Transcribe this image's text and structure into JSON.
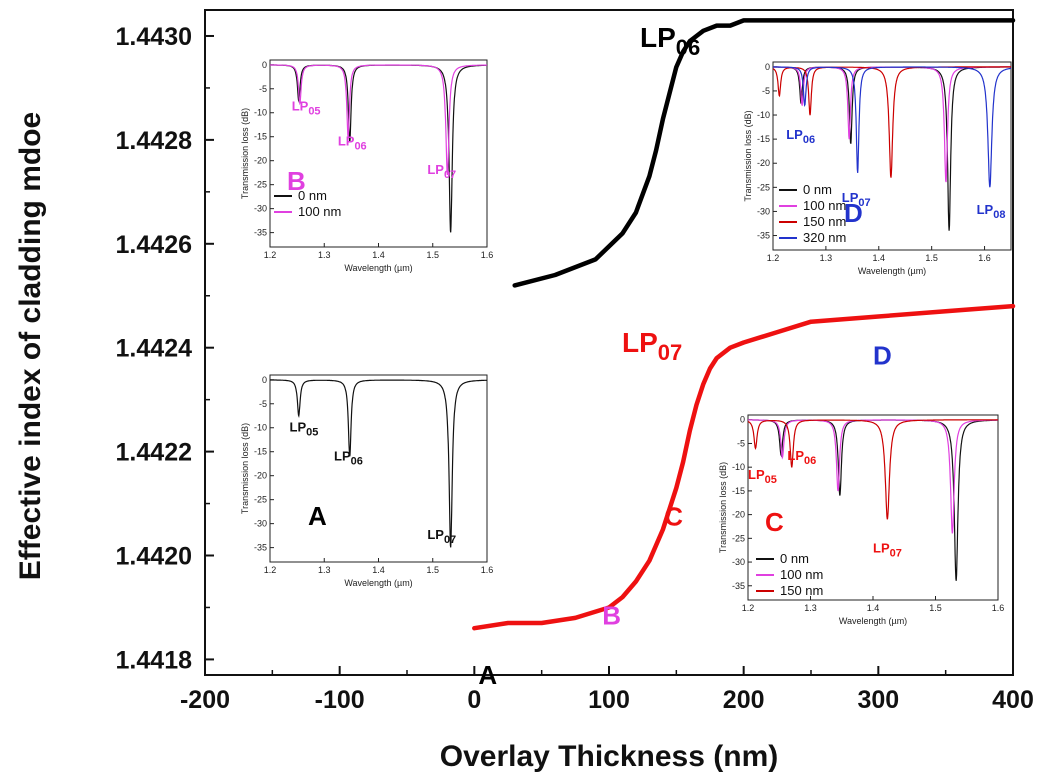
{
  "chart_data": {
    "type": "line",
    "xlabel": "Overlay Thickness (nm)",
    "ylabel": "Effective index of cladding mdoe",
    "xlim": [
      -200,
      400
    ],
    "ylim": [
      1.44177,
      1.44305
    ],
    "xticks": [
      "-200",
      "-100",
      "0",
      "100",
      "200",
      "300",
      "400"
    ],
    "yticks": [
      "1.4418",
      "1.4420",
      "1.4422",
      "1.4424",
      "1.4426",
      "1.4428",
      "1.4430"
    ],
    "series": [
      {
        "name": "LP06",
        "label_main": "LP",
        "label_sub": "06",
        "color": "#000000",
        "x": [
          30,
          60,
          90,
          110,
          120,
          130,
          135,
          140,
          145,
          150,
          155,
          160,
          165,
          170,
          180,
          190,
          200,
          225,
          250,
          300,
          350,
          400
        ],
        "y": [
          1.44252,
          1.44254,
          1.44257,
          1.44262,
          1.44266,
          1.44273,
          1.44278,
          1.44284,
          1.44289,
          1.44294,
          1.44297,
          1.44299,
          1.443,
          1.44301,
          1.44302,
          1.44302,
          1.44303,
          1.44303,
          1.44303,
          1.44303,
          1.44303,
          1.44303
        ]
      },
      {
        "name": "LP07",
        "label_main": "LP",
        "label_sub": "07",
        "color": "#ee1111",
        "x": [
          0,
          25,
          50,
          75,
          100,
          110,
          120,
          130,
          140,
          150,
          155,
          160,
          165,
          170,
          175,
          180,
          190,
          200,
          225,
          250,
          300,
          350,
          400
        ],
        "y": [
          1.44186,
          1.44187,
          1.44187,
          1.44188,
          1.4419,
          1.44192,
          1.44195,
          1.44199,
          1.44205,
          1.44213,
          1.44218,
          1.44224,
          1.44229,
          1.44233,
          1.44236,
          1.44238,
          1.4424,
          1.44241,
          1.44243,
          1.44245,
          1.44246,
          1.44247,
          1.44248
        ]
      }
    ],
    "annotations": [
      {
        "text": "A",
        "x": 10,
        "y": 1.44177,
        "color": "#000000"
      },
      {
        "text": "B",
        "x": 102,
        "y": 1.441885,
        "color": "#e040e0"
      },
      {
        "text": "C",
        "x": 148,
        "y": 1.442075,
        "color": "#ee1111"
      },
      {
        "text": "D",
        "x": 303,
        "y": 1.442385,
        "color": "#2233cc"
      }
    ],
    "insets": [
      {
        "id": "A",
        "panel": "A",
        "panel_color": "#000000",
        "xlabel": "Wavelength (µm)",
        "ylabel": "Transmission loss (dB)",
        "xlim": [
          1.2,
          1.6
        ],
        "ylim": [
          -38,
          1
        ],
        "xticks": [
          "1.2",
          "1.3",
          "1.4",
          "1.5",
          "1.6"
        ],
        "yticks": [
          "0",
          "-5",
          "-10",
          "-15",
          "-20",
          "-25",
          "-30",
          "-35"
        ],
        "legend": [],
        "mode_labels": [
          {
            "main": "LP",
            "sub": "05",
            "x": 1.236,
            "y": -10.8,
            "color": "#111111"
          },
          {
            "main": "LP",
            "sub": "06",
            "x": 1.318,
            "y": -16.8,
            "color": "#111111"
          },
          {
            "main": "LP",
            "sub": "07",
            "x": 1.49,
            "y": -33.2,
            "color": "#111111"
          }
        ],
        "spectra": [
          {
            "color": "#111111",
            "dips": [
              [
                1.253,
                7.5,
                0.003
              ],
              [
                1.347,
                16,
                0.003
              ],
              [
                1.533,
                35,
                0.0035
              ]
            ]
          }
        ]
      },
      {
        "id": "B",
        "panel": "B",
        "panel_color": "#e040e0",
        "xlabel": "Wavelength (µm)",
        "ylabel": "Transmission loss (dB)",
        "xlim": [
          1.2,
          1.6
        ],
        "ylim": [
          -38,
          1
        ],
        "xticks": [
          "1.2",
          "1.3",
          "1.4",
          "1.5",
          "1.6"
        ],
        "yticks": [
          "0",
          "-5",
          "-10",
          "-15",
          "-20",
          "-25",
          "-30",
          "-35"
        ],
        "legend": [
          {
            "label": "0 nm",
            "color": "#111111"
          },
          {
            "label": "100 nm",
            "color": "#e040e0"
          }
        ],
        "mode_labels": [
          {
            "main": "LP",
            "sub": "05",
            "x": 1.24,
            "y": -9.5,
            "color": "#e040e0"
          },
          {
            "main": "LP",
            "sub": "06",
            "x": 1.325,
            "y": -16.8,
            "color": "#e040e0"
          },
          {
            "main": "LP",
            "sub": "07",
            "x": 1.49,
            "y": -22.8,
            "color": "#e040e0"
          }
        ],
        "spectra": [
          {
            "color": "#111111",
            "dips": [
              [
                1.253,
                7.5,
                0.003
              ],
              [
                1.347,
                16,
                0.003
              ],
              [
                1.533,
                35,
                0.0035
              ]
            ]
          },
          {
            "color": "#e040e0",
            "dips": [
              [
                1.255,
                8,
                0.003
              ],
              [
                1.344,
                15,
                0.003
              ],
              [
                1.527,
                23,
                0.0035
              ]
            ]
          }
        ]
      },
      {
        "id": "C",
        "panel": "C",
        "panel_color": "#ee1111",
        "xlabel": "Wavelength (µm)",
        "ylabel": "Transmission loss (dB)",
        "xlim": [
          1.2,
          1.6
        ],
        "ylim": [
          -38,
          1
        ],
        "xticks": [
          "1.2",
          "1.3",
          "1.4",
          "1.5",
          "1.6"
        ],
        "yticks": [
          "0",
          "-5",
          "-10",
          "-15",
          "-20",
          "-25",
          "-30",
          "-35"
        ],
        "legend": [
          {
            "label": "0 nm",
            "color": "#111111"
          },
          {
            "label": "100 nm",
            "color": "#e040e0"
          },
          {
            "label": "150 nm",
            "color": "#cc0000"
          }
        ],
        "mode_labels": [
          {
            "main": "LP",
            "sub": "05",
            "x": 1.2,
            "y": -12.5,
            "color": "#ee1111"
          },
          {
            "main": "LP",
            "sub": "06",
            "x": 1.263,
            "y": -8.5,
            "color": "#ee1111"
          },
          {
            "main": "LP",
            "sub": "07",
            "x": 1.4,
            "y": -28,
            "color": "#ee1111"
          }
        ],
        "spectra": [
          {
            "color": "#111111",
            "dips": [
              [
                1.253,
                7.5,
                0.003
              ],
              [
                1.347,
                16,
                0.003
              ],
              [
                1.533,
                34,
                0.0035
              ]
            ]
          },
          {
            "color": "#e040e0",
            "dips": [
              [
                1.255,
                8,
                0.003
              ],
              [
                1.344,
                15,
                0.003
              ],
              [
                1.527,
                24,
                0.0035
              ]
            ]
          },
          {
            "color": "#cc0000",
            "dips": [
              [
                1.212,
                6,
                0.003
              ],
              [
                1.27,
                10,
                0.003
              ],
              [
                1.423,
                21,
                0.004
              ]
            ]
          }
        ]
      },
      {
        "id": "D",
        "panel": "D",
        "panel_color": "#2233cc",
        "xlabel": "Wavelength (µm)",
        "ylabel": "Transmission loss (dB)",
        "xlim": [
          1.2,
          1.65
        ],
        "ylim": [
          -38,
          1
        ],
        "xticks": [
          "1.2",
          "1.3",
          "1.4",
          "1.5",
          "1.6"
        ],
        "yticks": [
          "0",
          "-5",
          "-10",
          "-15",
          "-20",
          "-25",
          "-30",
          "-35"
        ],
        "legend": [
          {
            "label": "0 nm",
            "color": "#111111"
          },
          {
            "label": "100 nm",
            "color": "#e040e0"
          },
          {
            "label": "150 nm",
            "color": "#cc0000"
          },
          {
            "label": "320 nm",
            "color": "#2233cc"
          }
        ],
        "mode_labels": [
          {
            "main": "LP",
            "sub": "06",
            "x": 1.225,
            "y": -15,
            "color": "#2233cc"
          },
          {
            "main": "LP",
            "sub": "07",
            "x": 1.33,
            "y": -28,
            "color": "#2233cc"
          },
          {
            "main": "LP",
            "sub": "08",
            "x": 1.585,
            "y": -30.5,
            "color": "#2233cc"
          }
        ],
        "spectra": [
          {
            "color": "#111111",
            "dips": [
              [
                1.253,
                7.5,
                0.003
              ],
              [
                1.347,
                16,
                0.003
              ],
              [
                1.533,
                34,
                0.0035
              ]
            ]
          },
          {
            "color": "#e040e0",
            "dips": [
              [
                1.255,
                8,
                0.003
              ],
              [
                1.344,
                15,
                0.003
              ],
              [
                1.527,
                24,
                0.0035
              ]
            ]
          },
          {
            "color": "#cc0000",
            "dips": [
              [
                1.212,
                6,
                0.003
              ],
              [
                1.27,
                10,
                0.003
              ],
              [
                1.423,
                23,
                0.004
              ]
            ]
          },
          {
            "color": "#2233cc",
            "dips": [
              [
                1.26,
                8,
                0.003
              ],
              [
                1.36,
                22,
                0.003
              ],
              [
                1.61,
                25,
                0.0045
              ]
            ]
          }
        ]
      }
    ]
  }
}
